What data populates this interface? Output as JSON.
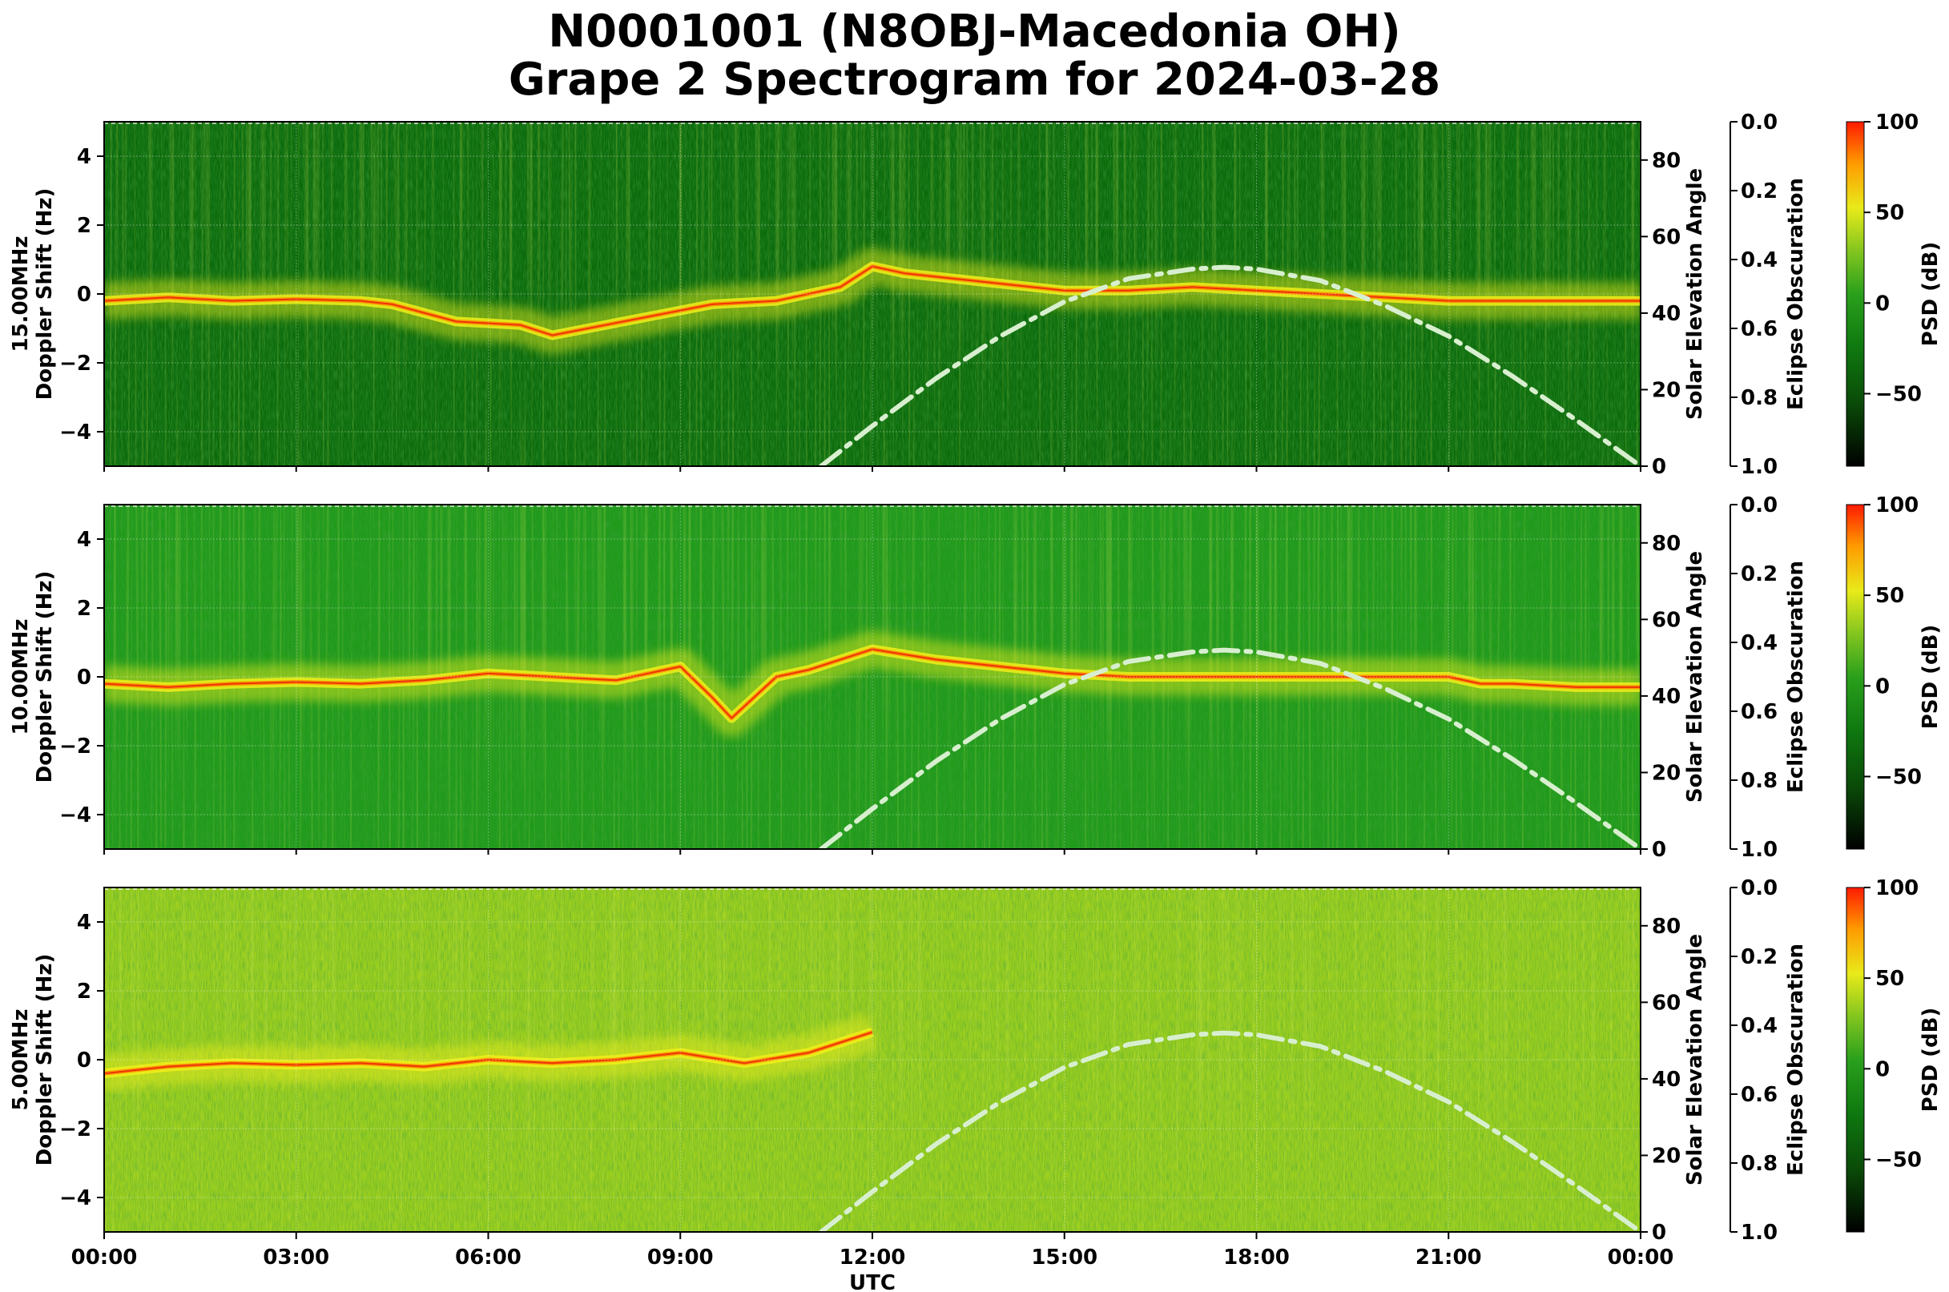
{
  "title_lines": [
    "N0001001 (N8OBJ-Macedonia OH)",
    "Grape 2 Spectrogram for 2024-03-28"
  ],
  "colors": {
    "dark_green": "#0b6a0b",
    "green": "#1f9a1a",
    "yellow_green": "#9ccf1e",
    "yellow": "#f0ee1a",
    "orange": "#ff8c00",
    "red": "#e61e0a",
    "solar_curve": "#d8efcf"
  },
  "chart_data": [
    {
      "type": "heatmap",
      "panel_label": "15.00MHz",
      "ylabel": "Doppler Shift (Hz)",
      "xlabel": "",
      "x_range_hours": [
        0,
        24
      ],
      "ylim": [
        -5,
        5
      ],
      "y_ticks": [
        4,
        2,
        0,
        -2,
        -4
      ],
      "y_tick_labels": [
        "4",
        "2",
        "0",
        "−2",
        "−4"
      ],
      "grid": true,
      "background_level": "dark",
      "carrier_trace": [
        [
          0,
          -0.2
        ],
        [
          1,
          -0.1
        ],
        [
          2,
          -0.2
        ],
        [
          3,
          -0.15
        ],
        [
          4,
          -0.2
        ],
        [
          4.5,
          -0.3
        ],
        [
          5.5,
          -0.8
        ],
        [
          6.5,
          -0.9
        ],
        [
          7,
          -1.2
        ],
        [
          9.5,
          -0.3
        ],
        [
          10.5,
          -0.2
        ],
        [
          11.5,
          0.2
        ],
        [
          12,
          0.8
        ],
        [
          12.5,
          0.6
        ],
        [
          14,
          0.3
        ],
        [
          15,
          0.1
        ],
        [
          16,
          0.1
        ],
        [
          17,
          0.2
        ],
        [
          18,
          0.1
        ],
        [
          19,
          0
        ],
        [
          20,
          -0.1
        ],
        [
          21,
          -0.2
        ],
        [
          22,
          -0.2
        ],
        [
          23,
          -0.2
        ],
        [
          24,
          -0.2
        ]
      ],
      "right_axis": {
        "label": "Solar Elevation Angle",
        "ylim": [
          0,
          90
        ],
        "ticks": [
          0,
          20,
          40,
          60,
          80
        ]
      },
      "solar_elevation": [
        [
          11.2,
          0
        ],
        [
          12,
          10.5
        ],
        [
          13,
          23
        ],
        [
          14,
          34
        ],
        [
          15,
          43
        ],
        [
          16,
          49
        ],
        [
          17,
          51.5
        ],
        [
          17.5,
          52
        ],
        [
          18,
          51.5
        ],
        [
          19,
          48.5
        ],
        [
          20,
          42
        ],
        [
          21,
          34
        ],
        [
          22,
          23.5
        ],
        [
          23,
          12
        ],
        [
          24,
          0
        ]
      ],
      "eclipse_axis": {
        "label": "Eclipse Obscuration",
        "ylim": [
          1.0,
          0.0
        ],
        "ticks": [
          0.0,
          0.2,
          0.4,
          0.6,
          0.8,
          1.0
        ],
        "tick_labels": [
          "0.0",
          "0.2",
          "0.4",
          "0.6",
          "0.8",
          "1.0"
        ]
      },
      "colorbar": {
        "label": "PSD (dB)",
        "range": [
          -90,
          100
        ],
        "ticks": [
          100,
          50,
          0,
          -50
        ],
        "tick_labels": [
          "100",
          "50",
          "0",
          "−50"
        ]
      }
    },
    {
      "type": "heatmap",
      "panel_label": "10.00MHz",
      "ylabel": "Doppler Shift (Hz)",
      "xlabel": "",
      "x_range_hours": [
        0,
        24
      ],
      "ylim": [
        -5,
        5
      ],
      "y_ticks": [
        4,
        2,
        0,
        -2,
        -4
      ],
      "y_tick_labels": [
        "4",
        "2",
        "0",
        "−2",
        "−4"
      ],
      "grid": true,
      "background_level": "medium",
      "carrier_trace": [
        [
          0,
          -0.2
        ],
        [
          1,
          -0.3
        ],
        [
          2,
          -0.2
        ],
        [
          3,
          -0.15
        ],
        [
          4,
          -0.2
        ],
        [
          5,
          -0.1
        ],
        [
          6,
          0.1
        ],
        [
          7,
          0
        ],
        [
          8,
          -0.1
        ],
        [
          9,
          0.3
        ],
        [
          9.5,
          -0.6
        ],
        [
          9.8,
          -1.2
        ],
        [
          10.5,
          0
        ],
        [
          11,
          0.2
        ],
        [
          12,
          0.8
        ],
        [
          13,
          0.5
        ],
        [
          14,
          0.3
        ],
        [
          15,
          0.1
        ],
        [
          16,
          0
        ],
        [
          18,
          0
        ],
        [
          20,
          0
        ],
        [
          21,
          0
        ],
        [
          21.5,
          -0.2
        ],
        [
          22,
          -0.2
        ],
        [
          23,
          -0.3
        ],
        [
          24,
          -0.3
        ]
      ],
      "right_axis": {
        "label": "Solar Elevation Angle",
        "ylim": [
          0,
          90
        ],
        "ticks": [
          0,
          20,
          40,
          60,
          80
        ]
      },
      "solar_elevation": [
        [
          11.2,
          0
        ],
        [
          12,
          10.5
        ],
        [
          13,
          23
        ],
        [
          14,
          34
        ],
        [
          15,
          43
        ],
        [
          16,
          49
        ],
        [
          17,
          51.5
        ],
        [
          17.5,
          52
        ],
        [
          18,
          51.5
        ],
        [
          19,
          48.5
        ],
        [
          20,
          42
        ],
        [
          21,
          34
        ],
        [
          22,
          23.5
        ],
        [
          23,
          12
        ],
        [
          24,
          0
        ]
      ],
      "eclipse_axis": {
        "label": "Eclipse Obscuration",
        "ylim": [
          1.0,
          0.0
        ],
        "ticks": [
          0.0,
          0.2,
          0.4,
          0.6,
          0.8,
          1.0
        ],
        "tick_labels": [
          "0.0",
          "0.2",
          "0.4",
          "0.6",
          "0.8",
          "1.0"
        ]
      },
      "colorbar": {
        "label": "PSD (dB)",
        "range": [
          -90,
          100
        ],
        "ticks": [
          100,
          50,
          0,
          -50
        ],
        "tick_labels": [
          "100",
          "50",
          "0",
          "−50"
        ]
      }
    },
    {
      "type": "heatmap",
      "panel_label": "5.00MHz",
      "ylabel": "Doppler Shift (Hz)",
      "xlabel": "UTC",
      "x_range_hours": [
        0,
        24
      ],
      "x_ticks": [
        0,
        3,
        6,
        9,
        12,
        15,
        18,
        21,
        24
      ],
      "x_tick_labels": [
        "00:00",
        "03:00",
        "06:00",
        "09:00",
        "12:00",
        "15:00",
        "18:00",
        "21:00",
        "00:00"
      ],
      "ylim": [
        -5,
        5
      ],
      "y_ticks": [
        4,
        2,
        0,
        -2,
        -4
      ],
      "y_tick_labels": [
        "4",
        "2",
        "0",
        "−2",
        "−4"
      ],
      "grid": true,
      "background_level": "light",
      "carrier_trace": [
        [
          0,
          -0.4
        ],
        [
          1,
          -0.2
        ],
        [
          2,
          -0.1
        ],
        [
          3,
          -0.15
        ],
        [
          4,
          -0.1
        ],
        [
          5,
          -0.2
        ],
        [
          6,
          0
        ],
        [
          7,
          -0.1
        ],
        [
          8,
          0
        ],
        [
          9,
          0.2
        ],
        [
          10,
          -0.1
        ],
        [
          11,
          0.2
        ],
        [
          11.5,
          0.5
        ],
        [
          12,
          0.8
        ]
      ],
      "right_axis": {
        "label": "Solar Elevation Angle",
        "ylim": [
          0,
          90
        ],
        "ticks": [
          0,
          20,
          40,
          60,
          80
        ]
      },
      "solar_elevation": [
        [
          11.2,
          0
        ],
        [
          12,
          10.5
        ],
        [
          13,
          23
        ],
        [
          14,
          34
        ],
        [
          15,
          43
        ],
        [
          16,
          49
        ],
        [
          17,
          51.5
        ],
        [
          17.5,
          52
        ],
        [
          18,
          51.5
        ],
        [
          19,
          48.5
        ],
        [
          20,
          42
        ],
        [
          21,
          34
        ],
        [
          22,
          23.5
        ],
        [
          23,
          12
        ],
        [
          24,
          0
        ]
      ],
      "eclipse_axis": {
        "label": "Eclipse Obscuration",
        "ylim": [
          1.0,
          0.0
        ],
        "ticks": [
          0.0,
          0.2,
          0.4,
          0.6,
          0.8,
          1.0
        ],
        "tick_labels": [
          "0.0",
          "0.2",
          "0.4",
          "0.6",
          "0.8",
          "1.0"
        ]
      },
      "colorbar": {
        "label": "PSD (dB)",
        "range": [
          -90,
          100
        ],
        "ticks": [
          100,
          50,
          0,
          -50
        ],
        "tick_labels": [
          "100",
          "50",
          "0",
          "−50"
        ]
      }
    }
  ]
}
